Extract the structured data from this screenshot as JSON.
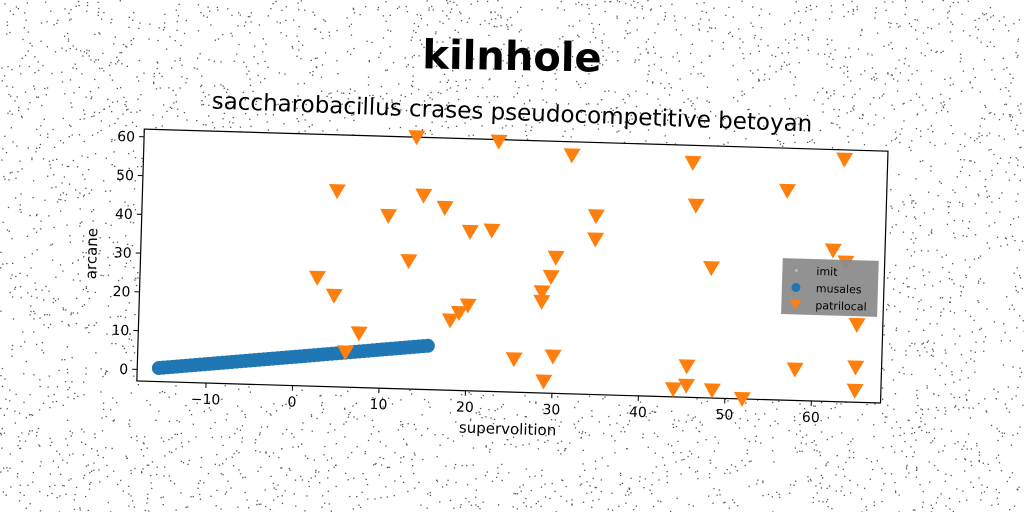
{
  "chart_data": {
    "type": "scatter",
    "title": "kilnhole",
    "subtitle": "saccharobacillus crases pseudocompetitive betoyan",
    "xlabel": "supervolition",
    "ylabel": "arcane",
    "xlim": [
      -18,
      68
    ],
    "ylim": [
      -3,
      62
    ],
    "xticks": [
      -10,
      0,
      10,
      20,
      30,
      40,
      50,
      60
    ],
    "xtick_labels": [
      "−10",
      "0",
      "10",
      "20",
      "30",
      "40",
      "50",
      "60"
    ],
    "yticks": [
      0,
      10,
      20,
      30,
      40,
      50,
      60
    ],
    "ytick_labels": [
      "0",
      "10",
      "20",
      "30",
      "40",
      "50",
      "60"
    ],
    "grid": false,
    "legend_position": "right",
    "series": [
      {
        "name": "imit",
        "marker": "point",
        "color": "#bbbbbb",
        "x": [],
        "y": []
      },
      {
        "name": "musales",
        "marker": "circle",
        "color": "#1f77b4",
        "line_from": [
          -15.5,
          0.5
        ],
        "line_to": [
          15.5,
          8.3
        ],
        "count": 60
      },
      {
        "name": "patrilocal",
        "marker": "triangle-down",
        "color": "#ff7f0e",
        "x": [
          13.5,
          23,
          31.5,
          45.5,
          63,
          4.5,
          14.5,
          17,
          10.5,
          20,
          22.5,
          34.5,
          34.5,
          46,
          56.5,
          13,
          30,
          29.5,
          48,
          62,
          63.5,
          2.5,
          4.5,
          28.5,
          28.5,
          20,
          19,
          18,
          65,
          7.5,
          6,
          25.5,
          30,
          45.5,
          58,
          65,
          29,
          45.5,
          44,
          48.5,
          52,
          65
        ],
        "y": [
          62,
          61.5,
          58.5,
          57.5,
          59.5,
          47.5,
          47,
          44,
          41.5,
          38,
          38.5,
          43,
          37,
          46.5,
          51,
          30,
          32,
          27,
          30.5,
          36,
          33,
          25,
          20.5,
          23,
          20.5,
          19,
          17,
          15,
          17,
          11,
          6,
          5.5,
          6.5,
          5,
          5,
          6,
          0,
          0,
          -1,
          -1,
          -3,
          0
        ]
      }
    ]
  }
}
